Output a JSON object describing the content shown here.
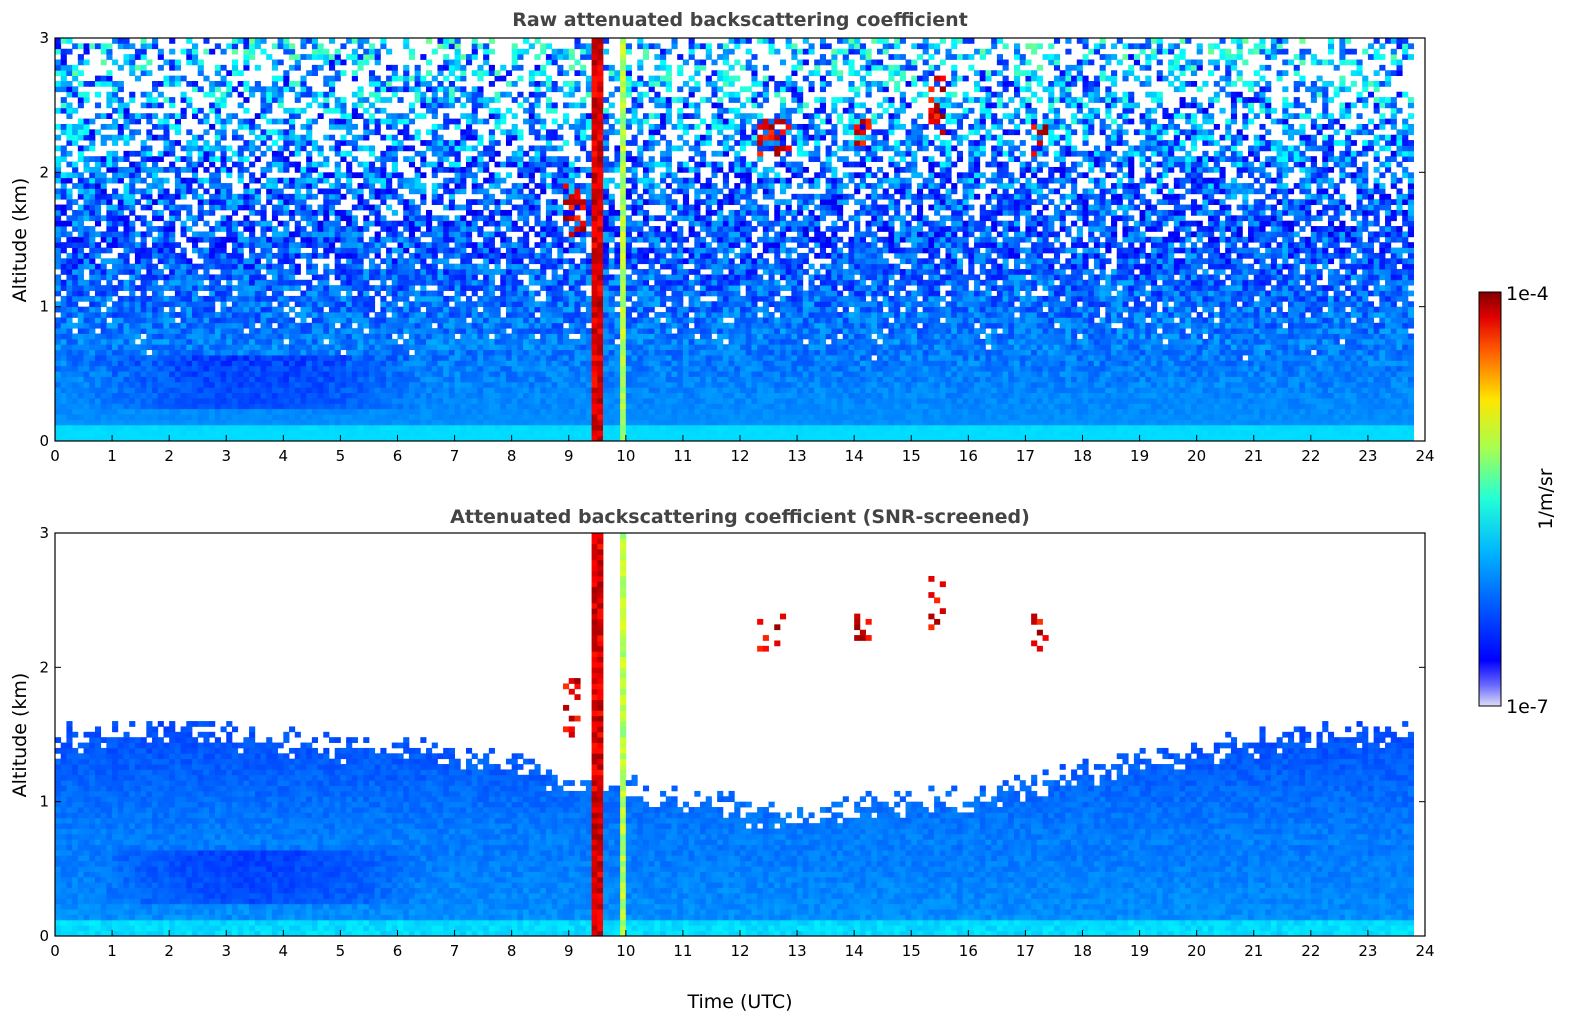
{
  "chart_data": [
    {
      "type": "heatmap",
      "title": "Raw attenuated backscattering coefficient",
      "xlabel": "",
      "ylabel": "Altitude (km)",
      "xlim": [
        0,
        24
      ],
      "ylim": [
        0,
        3
      ],
      "xticks": [
        "0",
        "1",
        "2",
        "3",
        "4",
        "5",
        "6",
        "7",
        "8",
        "9",
        "10",
        "11",
        "12",
        "13",
        "14",
        "15",
        "16",
        "17",
        "18",
        "19",
        "20",
        "21",
        "22",
        "23",
        "24"
      ],
      "yticks": [
        "0",
        "1",
        "2",
        "3"
      ],
      "data_extent_hours": [
        0,
        23.8
      ],
      "features": [
        {
          "kind": "boundary_layer_aerosol",
          "start_hour": 0,
          "end_hour": 23.8,
          "top_km": 0.7
        },
        {
          "kind": "elevated_aerosol_layer",
          "start_hour": 0.5,
          "end_hour": 6.5,
          "altitude_km": 0.4
        },
        {
          "kind": "thick_cloud_column",
          "start_hour": 9.4,
          "end_hour": 9.6,
          "base_km": 0,
          "top_km": 3
        },
        {
          "kind": "thick_cloud_column",
          "start_hour": 9.9,
          "end_hour": 9.98,
          "base_km": 0,
          "top_km": 3
        },
        {
          "kind": "cloud_patches",
          "start_hour": 8.9,
          "end_hour": 9.3,
          "altitude_km": [
            1.5,
            1.9
          ]
        },
        {
          "kind": "cloud_patches",
          "start_hour": 12.3,
          "end_hour": 12.9,
          "altitude_km": [
            2.1,
            2.4
          ]
        },
        {
          "kind": "cloud_patches",
          "start_hour": 14.0,
          "end_hour": 14.3,
          "altitude_km": [
            2.2,
            2.4
          ]
        },
        {
          "kind": "cloud_patches",
          "start_hour": 15.3,
          "end_hour": 15.6,
          "altitude_km": [
            2.3,
            2.7
          ]
        },
        {
          "kind": "cloud_patches",
          "start_hour": 17.1,
          "end_hour": 17.4,
          "altitude_km": [
            2.1,
            2.4
          ]
        }
      ]
    },
    {
      "type": "heatmap",
      "title": "Attenuated backscattering coefficient (SNR-screened)",
      "xlabel": "Time (UTC)",
      "ylabel": "Altitude (km)",
      "xlim": [
        0,
        24
      ],
      "ylim": [
        0,
        3
      ],
      "xticks": [
        "0",
        "1",
        "2",
        "3",
        "4",
        "5",
        "6",
        "7",
        "8",
        "9",
        "10",
        "11",
        "12",
        "13",
        "14",
        "15",
        "16",
        "17",
        "18",
        "19",
        "20",
        "21",
        "22",
        "23",
        "24"
      ],
      "yticks": [
        "0",
        "1",
        "2",
        "3"
      ],
      "data_extent_hours": [
        0,
        23.8
      ],
      "screened_top_km_by_hour": [
        1.45,
        1.5,
        1.55,
        1.5,
        1.45,
        1.4,
        1.4,
        1.35,
        1.3,
        1.1,
        1.1,
        1.0,
        0.95,
        0.9,
        0.95,
        1.0,
        1.0,
        1.1,
        1.2,
        1.3,
        1.35,
        1.45,
        1.5,
        1.5,
        1.5
      ]
    }
  ],
  "colorbar": {
    "label": "1/m/sr",
    "max_label": "1e-4",
    "min_label": "1e-7",
    "colormap": "jet",
    "range": [
      1e-07,
      0.0001
    ]
  }
}
